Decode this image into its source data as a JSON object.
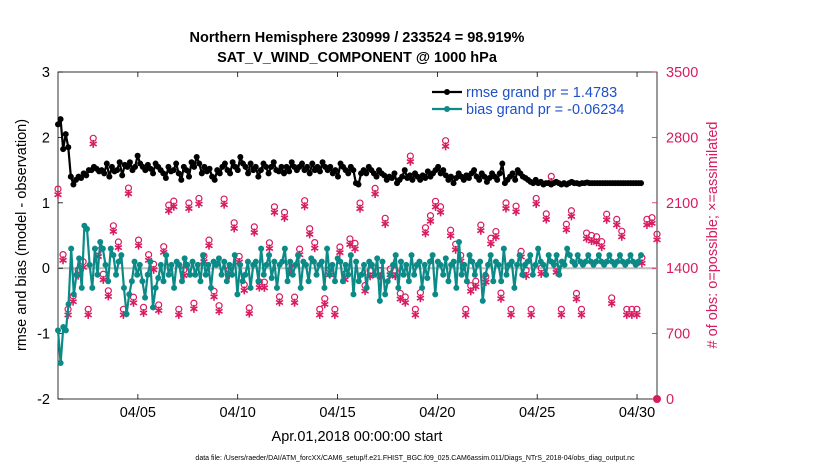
{
  "chart_data": {
    "type": "line",
    "title_line1": "Northern Hemisphere 230999 / 233524 = 98.919%",
    "title_line2": "SAT_V_WIND_COMPONENT @ 1000 hPa",
    "xlabel": "Apr.01,2018 00:00:00 start",
    "ylabel_left": "rmse and bias (model - observation)",
    "ylabel_right": "# of obs: o=possible; ×=assimilated",
    "x_tick_labels": [
      "04/05",
      "04/10",
      "04/15",
      "04/20",
      "04/25",
      "04/30"
    ],
    "x_tick_days": [
      5,
      10,
      15,
      20,
      25,
      30
    ],
    "xlim": [
      1,
      31
    ],
    "ylim_left": [
      -2,
      3
    ],
    "y_ticks_left": [
      "-2",
      "-1",
      "0",
      "1",
      "2",
      "3"
    ],
    "ylim_right": [
      0,
      3500
    ],
    "y_ticks_right": [
      "0",
      "700",
      "1400",
      "2100",
      "2800",
      "3500"
    ],
    "footnote": "data file: /Users/raeder/DAI/ATM_forcXX/CAM6_setup/f.e21.FHIST_BGC.f09_025.CAM6assim.011/Diags_NTrS_2018-04/obs_diag_output.nc",
    "colors": {
      "rmse": "#000000",
      "bias": "#0b8a87",
      "obs": "#d81b60",
      "zero": "#bdbdbd"
    },
    "series": [
      {
        "name": "rmse grand pr = 1.4783",
        "values": [
          2.2,
          2.28,
          1.82,
          2.05,
          1.85,
          1.4,
          1.28,
          1.35,
          1.4,
          1.38,
          1.45,
          1.42,
          1.5,
          1.5,
          1.55,
          1.52,
          1.48,
          1.5,
          1.45,
          1.6,
          1.4,
          1.55,
          1.48,
          1.5,
          1.62,
          1.42,
          1.58,
          1.55,
          1.62,
          1.5,
          1.55,
          1.72,
          1.6,
          1.55,
          1.5,
          1.58,
          1.52,
          1.45,
          1.6,
          1.55,
          1.5,
          1.45,
          1.38,
          1.55,
          1.48,
          1.5,
          1.6,
          1.45,
          1.35,
          1.55,
          1.5,
          1.4,
          1.62,
          1.55,
          1.7,
          1.6,
          1.45,
          1.55,
          1.48,
          1.52,
          1.4,
          1.35,
          1.5,
          1.45,
          1.55,
          1.6,
          1.5,
          1.45,
          1.62,
          1.55,
          1.5,
          1.7,
          1.6,
          1.55,
          1.45,
          1.6,
          1.5,
          1.55,
          1.4,
          1.5,
          1.6,
          1.55,
          1.45,
          1.55,
          1.62,
          1.5,
          1.48,
          1.55,
          1.45,
          1.55,
          1.48,
          1.62,
          1.55,
          1.5,
          1.55,
          1.6,
          1.5,
          1.55,
          1.45,
          1.6,
          1.5,
          1.55,
          1.48,
          1.62,
          1.55,
          1.5,
          1.55,
          1.45,
          1.5,
          1.4,
          1.6,
          1.55,
          1.5,
          1.45,
          1.55,
          1.5,
          1.3,
          1.28,
          1.45,
          1.5,
          1.45,
          1.55,
          1.5,
          1.45,
          1.4,
          1.5,
          1.45,
          1.42,
          1.35,
          1.4,
          1.38,
          1.45,
          1.3,
          1.35,
          1.4,
          1.5,
          1.38,
          1.42,
          1.35,
          1.45,
          1.4,
          1.35,
          1.42,
          1.38,
          1.48,
          1.4,
          1.45,
          1.5,
          1.55,
          1.45,
          1.5,
          1.42,
          1.35,
          1.4,
          1.3,
          1.38,
          1.45,
          1.4,
          1.35,
          1.42,
          1.38,
          1.45,
          1.5,
          1.4,
          1.35,
          1.45,
          1.4,
          1.32,
          1.38,
          1.45,
          1.4,
          1.35,
          1.45,
          1.6,
          1.3,
          1.35,
          1.4,
          1.45,
          1.35,
          1.5,
          1.45,
          1.4,
          1.38,
          1.35,
          1.32,
          1.3,
          1.35,
          1.3,
          1.32,
          1.28,
          1.3,
          1.3,
          1.28,
          1.3,
          1.32,
          1.3,
          1.28,
          1.3,
          1.28,
          1.3,
          1.32,
          1.3,
          1.3,
          1.29,
          1.3,
          1.3,
          1.31,
          1.3,
          1.3,
          1.3,
          1.3,
          1.3,
          1.3,
          1.3,
          1.3,
          1.3,
          1.3,
          1.3,
          1.3,
          1.3,
          1.3,
          1.3,
          1.3,
          1.3,
          1.3,
          1.3,
          1.3,
          1.3
        ]
      },
      {
        "name": "bias grand pr = -0.06234",
        "values": [
          -0.95,
          -1.45,
          -0.9,
          -0.95,
          -0.55,
          0.3,
          -0.4,
          -0.1,
          0.15,
          -0.3,
          0.65,
          0.6,
          0.05,
          -0.3,
          0.3,
          -0.1,
          0.4,
          0.3,
          0.05,
          -0.2,
          0.3,
          0.2,
          -0.1,
          0.1,
          0.2,
          -0.3,
          -0.7,
          -0.4,
          -0.2,
          0.1,
          -0.1,
          0.05,
          -0.2,
          -0.45,
          -0.1,
          0.1,
          -0.6,
          -0.3,
          -0.15,
          0.05,
          -0.2,
          0.2,
          -0.1,
          0.05,
          -0.3,
          0.1,
          0.05,
          -0.2,
          0.15,
          0.05,
          -0.1,
          0.1,
          -0.1,
          0.05,
          -0.2,
          0.2,
          -0.1,
          0.05,
          -0.3,
          0.1,
          0.05,
          0.15,
          -0.1,
          0.1,
          -0.2,
          0.05,
          -0.1,
          0.2,
          -0.4,
          0.05,
          -0.2,
          -0.1,
          0.1,
          -0.3,
          0.05,
          0.1,
          -0.2,
          0.3,
          -0.1,
          0.05,
          0.2,
          -0.15,
          0.1,
          -0.3,
          0.05,
          0.1,
          0.3,
          -0.2,
          0.1,
          -0.1,
          0.05,
          0.2,
          -0.3,
          0.1,
          0.05,
          -0.2,
          0.15,
          0.1,
          -0.1,
          0.05,
          0.1,
          -0.3,
          0.3,
          -0.1,
          0.05,
          -0.2,
          0.15,
          0.1,
          -0.2,
          0.05,
          -0.1,
          0.2,
          -0.4,
          0.1,
          -0.2,
          -0.1,
          0.05,
          -0.3,
          0.1,
          0.05,
          -0.1,
          0.15,
          -0.5,
          0.1,
          -0.4,
          -0.2,
          -0.1,
          0.05,
          0.2,
          -0.3,
          0.1,
          -0.1,
          0.05,
          -0.2,
          0.2,
          -0.1,
          0.05,
          0.1,
          -0.3,
          0.05,
          -0.15,
          0.1,
          0.2,
          -0.4,
          0.1,
          0.05,
          -0.1,
          0.15,
          -0.2,
          0.05,
          0.1,
          -0.3,
          0.4,
          -0.1,
          0.05,
          -0.2,
          0.2,
          0.1,
          -0.1,
          0.05,
          0.1,
          -0.5,
          -0.1,
          0.05,
          0.2,
          -0.2,
          0.1,
          0.05,
          -0.2,
          0.3,
          -0.1,
          0.05,
          0.1,
          -0.3,
          0.05,
          0.2,
          -0.1,
          0.05,
          0.1,
          0.2,
          -0.1,
          0.05,
          0.3,
          0.1,
          0.05,
          -0.1,
          0.2,
          0.1,
          0.05,
          0.2,
          -0.1,
          0.1,
          0.05,
          0.3,
          0.2,
          0.1,
          0.05,
          0.2,
          0.1,
          0.05,
          0.1,
          0.2,
          0.1,
          0.05,
          0.1,
          0.2,
          0.1,
          0.05,
          0.1,
          0.2,
          0.1,
          0.05,
          0.1,
          0.2,
          0.1,
          0.05,
          0.1,
          0.2,
          0.1,
          0.05,
          0.1,
          0.2
        ]
      }
    ]
  },
  "legend_text": {
    "rmse": "rmse grand pr = 1.4783",
    "bias": "bias grand pr = -0.06234"
  }
}
